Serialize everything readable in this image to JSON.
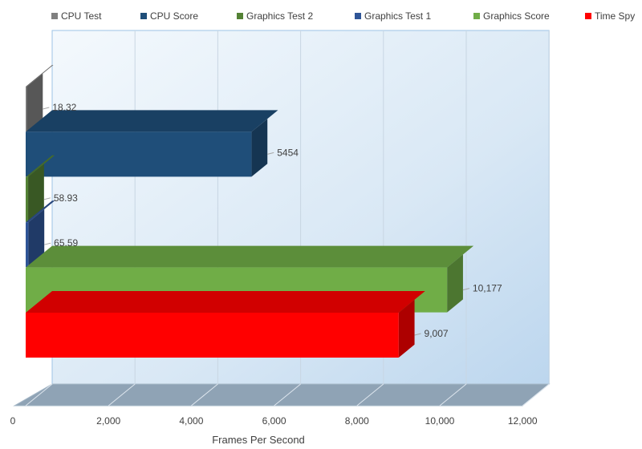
{
  "chart_data": {
    "type": "bar",
    "orientation": "horizontal",
    "three_d": true,
    "xlabel": "Frames Per Second",
    "xlim": [
      0,
      12000
    ],
    "xticks": [
      0,
      2000,
      4000,
      6000,
      8000,
      10000,
      12000
    ],
    "xtick_labels": [
      "0",
      "2,000",
      "4,000",
      "6,000",
      "8,000",
      "10,000",
      "12,000"
    ],
    "grid": true,
    "legend_position": "top",
    "series": [
      {
        "name": "CPU Test",
        "value": 18.32,
        "label": "18.32",
        "color": "#808080"
      },
      {
        "name": "CPU Score",
        "value": 5454,
        "label": "5454",
        "color": "#1f4e79"
      },
      {
        "name": "Graphics Test 2",
        "value": 58.93,
        "label": "58.93",
        "color": "#548235"
      },
      {
        "name": "Graphics Test 1",
        "value": 65.59,
        "label": "65.59",
        "color": "#2f5597"
      },
      {
        "name": "Graphics Score",
        "value": 10177,
        "label": "10,177",
        "color": "#70ad47"
      },
      {
        "name": "Time Spy",
        "value": 9007,
        "label": "9,007",
        "color": "#ff0000"
      }
    ]
  }
}
